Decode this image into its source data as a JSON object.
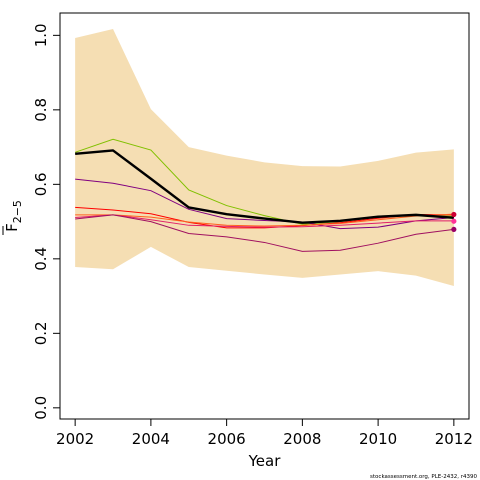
{
  "chart_data": {
    "type": "line",
    "xlabel": "Year",
    "ylabel": {
      "main": "F",
      "sub": "2−5"
    },
    "xlim": [
      2001.6,
      2012.4
    ],
    "ylim": [
      -0.03,
      1.06
    ],
    "xticks": [
      2002,
      2004,
      2006,
      2008,
      2010,
      2012
    ],
    "yticks": [
      0.0,
      0.2,
      0.4,
      0.6,
      0.8,
      1.0
    ],
    "ytick_labels": [
      "0.0",
      "0.2",
      "0.4",
      "0.6",
      "0.8",
      "1.0"
    ],
    "x": [
      2002,
      2003,
      2004,
      2005,
      2006,
      2007,
      2008,
      2009,
      2010,
      2011,
      2012
    ],
    "band": {
      "color": "#f5deb3",
      "lower": [
        0.378,
        0.372,
        0.432,
        0.378,
        0.368,
        0.358,
        0.349,
        0.358,
        0.367,
        0.355,
        0.327
      ],
      "upper": [
        0.993,
        1.017,
        0.802,
        0.7,
        0.677,
        0.659,
        0.649,
        0.648,
        0.663,
        0.685,
        0.694
      ]
    },
    "main_series": {
      "color": "#000000",
      "values": [
        0.682,
        0.691,
        0.615,
        0.538,
        0.52,
        0.508,
        0.497,
        0.502,
        0.513,
        0.518,
        0.51
      ]
    },
    "series": [
      {
        "color": "#80c000",
        "values": [
          0.686,
          0.721,
          0.692,
          0.585,
          0.543,
          0.516,
          0.493,
          0.5,
          0.512,
          0.518,
          0.514
        ]
      },
      {
        "color": "#800080",
        "values": [
          0.614,
          0.603,
          0.583,
          0.533,
          0.508,
          0.503,
          0.499,
          0.481,
          0.485,
          0.502,
          0.511
        ]
      },
      {
        "color": "#ff0000",
        "values": [
          0.538,
          0.531,
          0.521,
          0.498,
          0.483,
          0.483,
          0.489,
          0.497,
          0.509,
          0.519,
          0.518
        ]
      },
      {
        "color": "#ff6020",
        "values": [
          0.518,
          0.518,
          0.512,
          0.499,
          0.49,
          0.488,
          0.49,
          0.495,
          0.505,
          0.515,
          0.52
        ]
      },
      {
        "color": "#e0206a",
        "values": [
          0.511,
          0.518,
          0.505,
          0.49,
          0.487,
          0.485,
          0.486,
          0.49,
          0.496,
          0.502,
          0.502
        ]
      },
      {
        "color": "#a01060",
        "values": [
          0.507,
          0.518,
          0.5,
          0.468,
          0.459,
          0.444,
          0.42,
          0.423,
          0.442,
          0.466,
          0.479
        ]
      }
    ],
    "end_points": [
      {
        "color": "#cc0033",
        "x": 2012,
        "y": 0.519
      },
      {
        "color": "#ff3399",
        "x": 2012,
        "y": 0.501
      },
      {
        "color": "#990066",
        "x": 2012,
        "y": 0.479
      }
    ]
  },
  "footer": "stockassessment.org, PLE-2432, r4390"
}
